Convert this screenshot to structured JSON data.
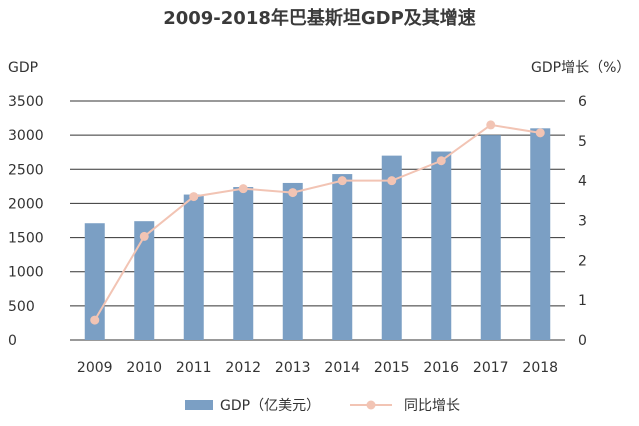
{
  "chart_data": {
    "type": "bar",
    "title": "2009-2018年巴基斯坦GDP及其增速",
    "categories": [
      "2009",
      "2010",
      "2011",
      "2012",
      "2013",
      "2014",
      "2015",
      "2016",
      "2017",
      "2018"
    ],
    "series": [
      {
        "name": "GDP（亿美元）",
        "type": "bar",
        "axis": "left",
        "color": "#7b9fc4",
        "values": [
          1710,
          1740,
          2130,
          2240,
          2300,
          2430,
          2700,
          2760,
          3000,
          3100
        ]
      },
      {
        "name": "同比增长",
        "type": "line",
        "axis": "right",
        "color": "#f2c4b4",
        "values": [
          0.5,
          2.6,
          3.6,
          3.8,
          3.7,
          4.0,
          4.0,
          4.5,
          5.4,
          5.2
        ]
      }
    ],
    "yaxis_left": {
      "label": "GDP",
      "ticks": [
        "0",
        "500",
        "1000",
        "1500",
        "2000",
        "2500",
        "3000",
        "3500"
      ],
      "min": 0,
      "max": 3500
    },
    "yaxis_right": {
      "label": "GDP增长（%）",
      "ticks": [
        "0",
        "1",
        "2",
        "3",
        "4",
        "5",
        "6"
      ],
      "min": 0,
      "max": 6
    },
    "grid": true,
    "legend_position": "bottom"
  }
}
